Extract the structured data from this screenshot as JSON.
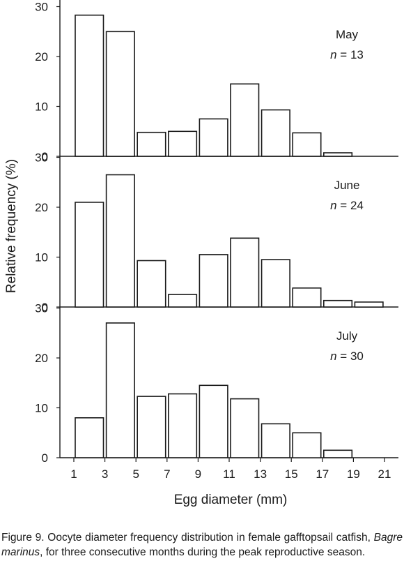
{
  "chart_data": {
    "type": "bar",
    "shared_x_categories": [
      "1",
      "3",
      "5",
      "7",
      "9",
      "11",
      "13",
      "15",
      "17",
      "19",
      "21"
    ],
    "xlabel": "Egg diameter (mm)",
    "ylabel": "Relative frequency (%)",
    "ylim": [
      0,
      30
    ],
    "yticks": [
      "0",
      "10",
      "20",
      "30"
    ],
    "panels": [
      {
        "month": "May",
        "n_label": "n",
        "n_value": "= 13",
        "values": [
          28.3,
          25.0,
          4.8,
          5.0,
          7.5,
          14.5,
          9.3,
          4.7,
          0.7,
          0,
          0
        ]
      },
      {
        "month": "June",
        "n_label": "n",
        "n_value": "= 24",
        "values": [
          21.0,
          26.5,
          9.3,
          2.5,
          10.5,
          13.8,
          9.5,
          3.8,
          1.3,
          1.0,
          0
        ]
      },
      {
        "month": "July",
        "n_label": "n",
        "n_value": "= 30",
        "values": [
          8.0,
          27.0,
          12.3,
          12.8,
          14.5,
          11.8,
          6.8,
          5.0,
          1.5,
          0,
          0
        ]
      }
    ]
  },
  "caption": {
    "prefix": "Figure 9. Oocyte diameter frequency distribution in female gafftopsail catfish, ",
    "species": "Bagre marinus",
    "suffix": ", for three consecutive months during the peak reproductive season."
  }
}
